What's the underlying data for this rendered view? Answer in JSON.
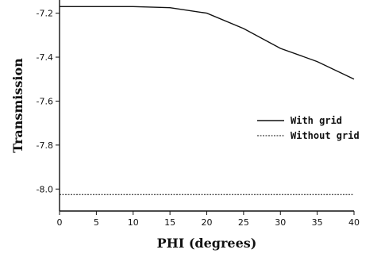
{
  "chart_data": {
    "type": "line",
    "title": "",
    "xlabel": "PHI (degrees)",
    "ylabel": "Transmission",
    "xlim": [
      0,
      40
    ],
    "ylim": [
      -8.1,
      -7.14
    ],
    "x_ticks": [
      0,
      5,
      10,
      15,
      20,
      25,
      30,
      35,
      40
    ],
    "y_ticks": [
      -7.2,
      -7.4,
      -7.6,
      -7.8,
      -8.0
    ],
    "y_tick_labels": [
      "-7.2",
      "-7.4",
      "-7.6",
      "-7.8",
      "-8.0"
    ],
    "grid": false,
    "legend_position": "right",
    "series": [
      {
        "name": "With grid",
        "style": "solid",
        "x": [
          0,
          5,
          10,
          15,
          20,
          25,
          30,
          35,
          40
        ],
        "y": [
          -7.17,
          -7.17,
          -7.17,
          -7.175,
          -7.2,
          -7.27,
          -7.36,
          -7.42,
          -7.5
        ]
      },
      {
        "name": "Without grid",
        "style": "dashed",
        "x": [
          0,
          5,
          10,
          15,
          20,
          25,
          30,
          35,
          40
        ],
        "y": [
          -8.025,
          -8.025,
          -8.025,
          -8.025,
          -8.025,
          -8.025,
          -8.025,
          -8.025,
          -8.025
        ]
      }
    ]
  }
}
